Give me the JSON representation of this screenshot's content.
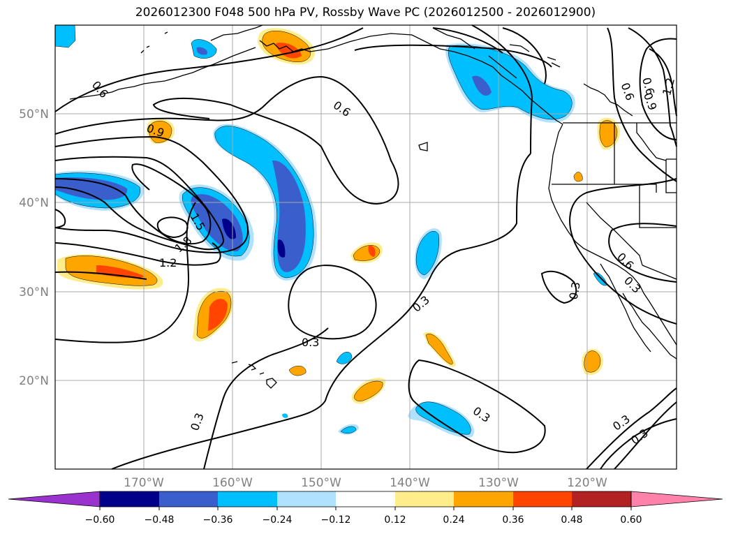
{
  "title": "2026012300 F048 500 hPa PV, Rossby Wave PC (2026012500 - 2026012900)",
  "map": {
    "lon_range": [
      "180°",
      "110°W"
    ],
    "lat_range": [
      "10°N",
      "60°N"
    ],
    "lat_labels": [
      "50°N",
      "40°N",
      "30°N",
      "20°N"
    ],
    "lon_labels": [
      "170°W",
      "160°W",
      "150°W",
      "140°W",
      "130°W",
      "120°W"
    ],
    "contour_labels": [
      "0.6",
      "0.6",
      "0.9",
      "1.5",
      "1.8",
      "1.2",
      "0.3",
      "0.3",
      "0.3",
      "0.3",
      "0.3",
      "0.3",
      "0.6",
      "0.6",
      "0.9",
      "1.2",
      "0.6",
      "0.3",
      "0.3"
    ]
  },
  "colorbar": {
    "ticks": [
      "−0.60",
      "−0.48",
      "−0.36",
      "−0.24",
      "−0.12",
      "0.12",
      "0.24",
      "0.36",
      "0.48",
      "0.60"
    ],
    "colors": [
      "#9a32cd",
      "#00008b",
      "#3a5fcd",
      "#00bfff",
      "#b0e2ff",
      "#ffffff",
      "#ffec8b",
      "#ffa500",
      "#ff4500",
      "#b22222",
      "#ff82ab"
    ]
  }
}
